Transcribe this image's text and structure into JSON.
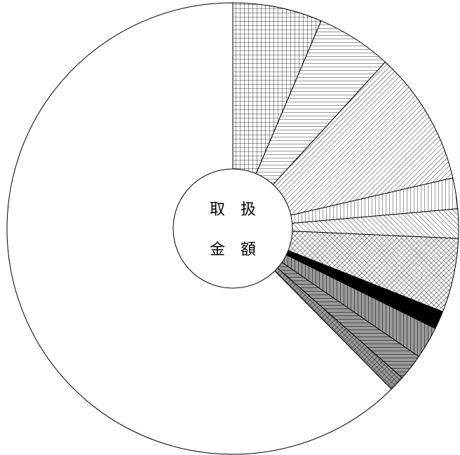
{
  "chart_data": {
    "type": "pie",
    "values": [
      6.4,
      5.4,
      9.6,
      2.2,
      2.1,
      5.3,
      1.3,
      2.3,
      1.9,
      1.1,
      62.4
    ],
    "patterns": [
      "grid",
      "hlines",
      "diag",
      "vlines",
      "rdiag",
      "crosshatch",
      "solid",
      "gray-vlines",
      "gray-hlines",
      "gray-crosshatch",
      "none"
    ],
    "center_label": [
      "取　扱",
      "金　額"
    ]
  }
}
